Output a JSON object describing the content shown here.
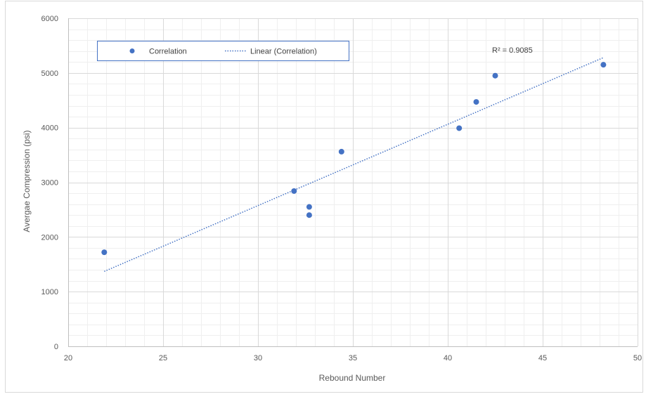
{
  "chart_data": {
    "type": "scatter",
    "title": "",
    "xlabel": "Rebound Number",
    "ylabel": "Avergae Compression (psi)",
    "xlim": [
      20,
      50
    ],
    "ylim": [
      0,
      6000
    ],
    "x_ticks": [
      20,
      25,
      30,
      35,
      40,
      45,
      50
    ],
    "y_ticks": [
      0,
      1000,
      2000,
      3000,
      4000,
      5000,
      6000
    ],
    "grid": true,
    "minor_grid": true,
    "legend_position": "top-left",
    "series": [
      {
        "name": "Correlation",
        "color": "#4472c4",
        "marker": "circle",
        "x": [
          21.9,
          31.9,
          32.7,
          32.7,
          34.4,
          40.6,
          41.5,
          42.5,
          48.2
        ],
        "y": [
          1720,
          2840,
          2550,
          2400,
          3560,
          3990,
          4470,
          4950,
          5150
        ]
      }
    ],
    "trendline": {
      "name": "Linear (Correlation)",
      "type": "linear",
      "color": "#4472c4",
      "style": "dotted",
      "x": [
        21.9,
        48.2
      ],
      "y": [
        1370,
        5280
      ]
    },
    "annotations": [
      {
        "text": "R² = 0.9085"
      }
    ]
  }
}
